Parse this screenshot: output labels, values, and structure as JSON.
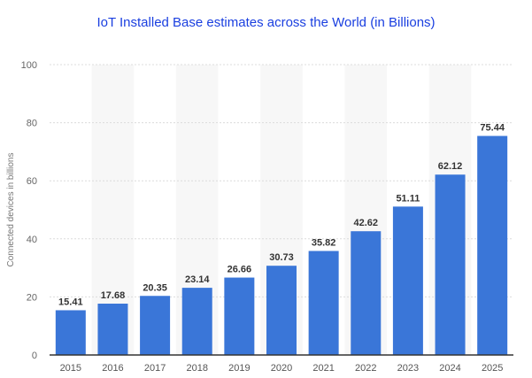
{
  "chart_data": {
    "type": "bar",
    "title": "IoT Installed Base estimates across the World (in Billions)",
    "xlabel": "",
    "ylabel": "Connected devices in billions",
    "categories": [
      "2015",
      "2016",
      "2017",
      "2018",
      "2019",
      "2020",
      "2021",
      "2022",
      "2023",
      "2024",
      "2025"
    ],
    "values": [
      15.41,
      17.68,
      20.35,
      23.14,
      26.66,
      30.73,
      35.82,
      42.62,
      51.11,
      62.12,
      75.44
    ],
    "value_labels": [
      "15.41",
      "17.68",
      "20.35",
      "23.14",
      "26.66",
      "30.73",
      "35.82",
      "42.62",
      "51.11",
      "62.12",
      "75.44"
    ],
    "ylim": [
      0,
      100
    ],
    "yticks": [
      "0",
      "20",
      "40",
      "60",
      "80",
      "100"
    ],
    "grid": true,
    "bar_color": "#3a76d8"
  }
}
